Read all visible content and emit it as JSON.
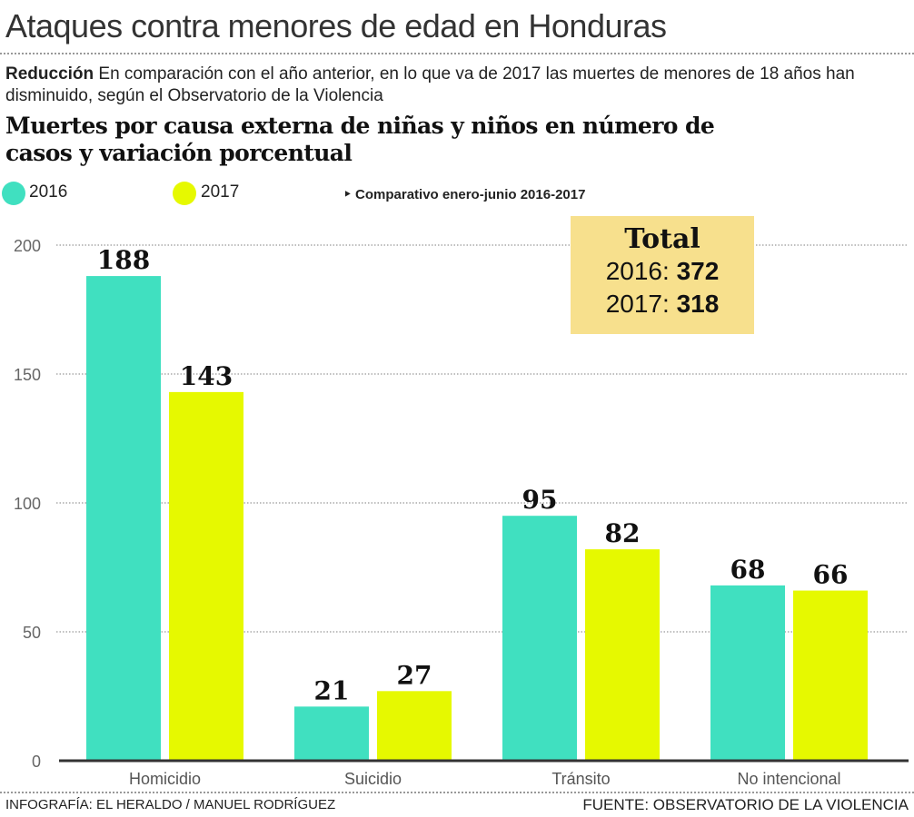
{
  "title": "Ataques contra menores de edad en Honduras",
  "intro": {
    "lead": "Reducción",
    "text": " En comparación con el año anterior, en lo que va de 2017 las muertes de menores de 18 años han disminuido, según el Observatorio de la Violencia"
  },
  "note": "‣ Comparativo enero-junio 2016-2017",
  "total": {
    "label": "Total",
    "rows": [
      {
        "year": "2016:",
        "value": "372"
      },
      {
        "year": "2017:",
        "value": "318"
      }
    ],
    "color": "#f7e08d"
  },
  "credit": "INFOGRAFÍA: EL HERALDO / MANUEL RODRÍGUEZ",
  "source": "FUENTE: OBSERVATORIO DE LA VIOLENCIA",
  "chart_data": {
    "type": "bar",
    "title": "Muertes por causa externa de niñas y niños en número de casos y variación porcentual",
    "categories": [
      "Homicidio",
      "Suicidio",
      "Tránsito",
      "No intencional"
    ],
    "series": [
      {
        "name": "2016",
        "values": [
          188,
          21,
          95,
          68
        ],
        "color": "#40e0c0"
      },
      {
        "name": "2017",
        "values": [
          143,
          27,
          82,
          66
        ],
        "color": "#e6f900"
      }
    ],
    "ylim": [
      0,
      200
    ],
    "yticks": [
      0,
      50,
      100,
      150,
      200
    ],
    "grid": true,
    "legend": "top-left",
    "xlabel": "",
    "ylabel": ""
  }
}
